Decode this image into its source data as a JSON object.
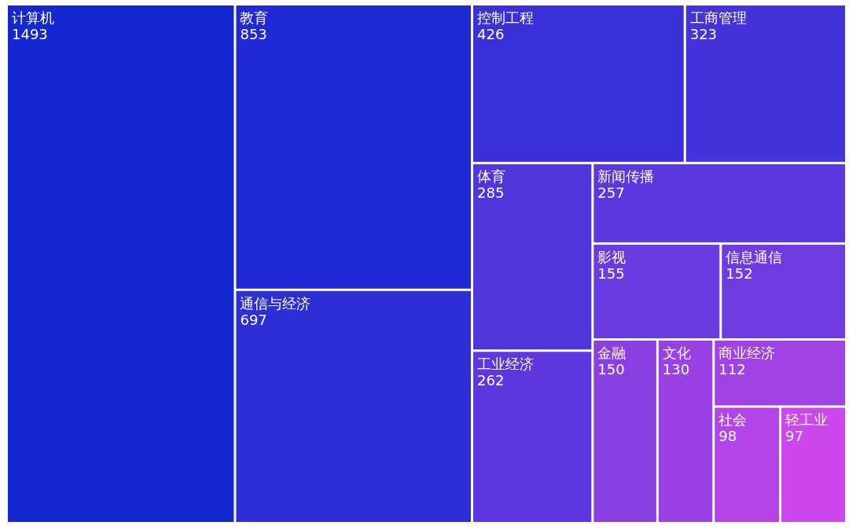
{
  "chart_data": {
    "type": "other",
    "categories": [
      "计算机",
      "教育",
      "通信与经济",
      "控制工程",
      "工商管理",
      "体育",
      "新闻传播",
      "工业经济",
      "影视",
      "信息通信",
      "金融",
      "文化",
      "商业经济",
      "社会",
      "轻工业"
    ],
    "values": [
      1493,
      853,
      697,
      426,
      323,
      285,
      257,
      262,
      155,
      152,
      150,
      130,
      112,
      98,
      97
    ],
    "colors": [
      "#1428d2",
      "#1f2ad4",
      "#2e2ed6",
      "#3a30d8",
      "#4432da",
      "#5135dc",
      "#5a37de",
      "#5e38de",
      "#6a3be0",
      "#6e3ce0",
      "#8a3fe3",
      "#9a41e5",
      "#a042e6",
      "#b244e8",
      "#cc48ec"
    ],
    "data_labels": true
  }
}
